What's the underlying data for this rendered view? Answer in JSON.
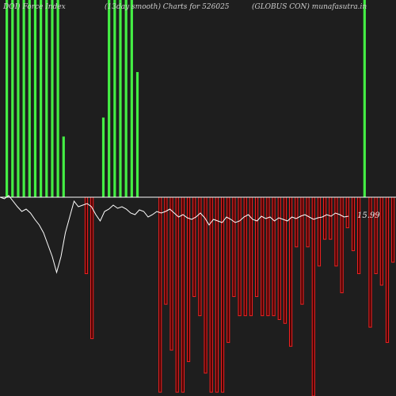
{
  "titles": {
    "left": "DOI) Force  Index",
    "center": "(13day smooth) Charts for 526025",
    "right": "(GLOBUS CON) munafasutra.in"
  },
  "chart_data": {
    "type": "bar",
    "title": "(13day smooth) Charts for 526025",
    "last_value_label": "15.99",
    "ylim": [
      -260,
      260
    ],
    "colors": {
      "positive": "#44ee44",
      "negative": "#ee2222",
      "negative_core": "#4a0000",
      "line": "#ffffff",
      "zero_line": "#ffffff",
      "background": "#1e1e1e"
    },
    "bars": [
      260,
      260,
      260,
      260,
      260,
      260,
      260,
      260,
      260,
      260,
      80,
      0,
      0,
      0,
      -100,
      -185,
      0,
      105,
      260,
      260,
      260,
      260,
      260,
      165,
      0,
      0,
      0,
      -255,
      -140,
      -200,
      -255,
      -255,
      -215,
      -130,
      -155,
      -230,
      -255,
      -255,
      -255,
      -190,
      -130,
      -155,
      -155,
      -155,
      -130,
      -155,
      -155,
      -155,
      -160,
      -165,
      -195,
      -65,
      -140,
      -65,
      -260,
      -90,
      -55,
      -55,
      -90,
      -125,
      -40,
      -70,
      -100,
      260,
      -170,
      -100,
      -115,
      -190,
      -85,
      -75,
      -85,
      -90,
      -45,
      -195,
      -45,
      -155,
      -75,
      -65,
      -150,
      -5,
      -50
    ],
    "line": [
      0,
      2,
      -2,
      5,
      12,
      18,
      15,
      20,
      28,
      35,
      45,
      60,
      75,
      95,
      75,
      45,
      25,
      5,
      12,
      10,
      8,
      12,
      22,
      30,
      18,
      15,
      10,
      14,
      12,
      15,
      20,
      22,
      16,
      18,
      25,
      22,
      18,
      20,
      18,
      15,
      20,
      25,
      22,
      26,
      28,
      25,
      20,
      26,
      35,
      28,
      30,
      32,
      25,
      28,
      32,
      30,
      25,
      22,
      28,
      30,
      24,
      27,
      25,
      30,
      26,
      28,
      30,
      25,
      27,
      24,
      22,
      25,
      28,
      26,
      25,
      22,
      24,
      20,
      22,
      25,
      24
    ]
  }
}
